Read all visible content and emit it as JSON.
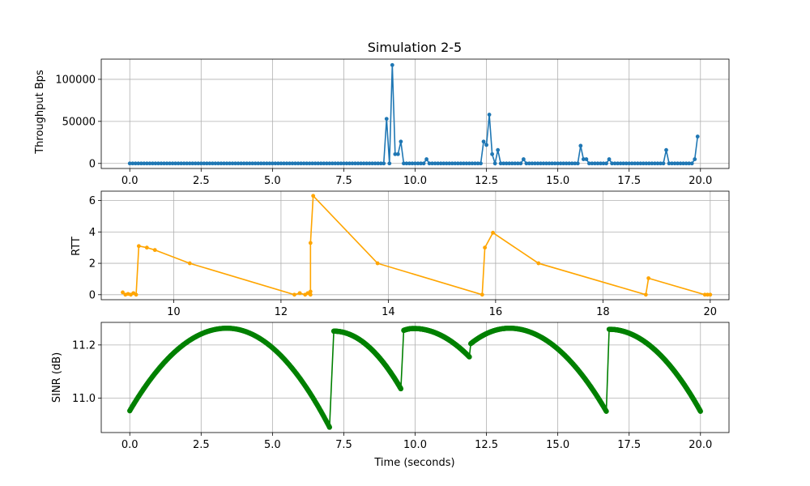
{
  "title": "Simulation 2-5",
  "chart_data": [
    {
      "type": "line",
      "ylabel": "Throughput Bps",
      "xlabel": "",
      "xlim": [
        -1.0,
        21.0
      ],
      "ylim": [
        -6000,
        124000
      ],
      "grid": true,
      "color": "#1f77b4",
      "xticks": [
        0.0,
        2.5,
        5.0,
        7.5,
        10.0,
        12.5,
        15.0,
        17.5,
        20.0
      ],
      "xtick_labels": [
        "0.0",
        "2.5",
        "5.0",
        "7.5",
        "10.0",
        "12.5",
        "15.0",
        "17.5",
        "20.0"
      ],
      "yticks": [
        0,
        50000,
        100000
      ],
      "ytick_labels": [
        "0",
        "50000",
        "100000"
      ],
      "x": [
        9.0,
        9.1,
        9.2,
        9.3,
        9.4,
        9.5,
        9.6,
        10.3,
        10.4,
        12.3,
        12.4,
        12.5,
        12.6,
        12.7,
        12.8,
        12.9,
        13.7,
        13.8,
        13.9,
        15.7,
        15.8,
        15.9,
        16.0,
        16.1,
        16.7,
        16.8,
        16.9,
        18.7,
        18.8,
        18.9,
        19.8,
        19.9
      ],
      "y": [
        53000,
        0,
        117000,
        11000,
        11000,
        26000,
        0,
        0,
        5000,
        0,
        26000,
        22000,
        58000,
        11000,
        0,
        16000,
        0,
        5000,
        0,
        0,
        21000,
        5000,
        5000,
        0,
        0,
        5000,
        0,
        0,
        16000,
        0,
        5000,
        32000
      ]
    },
    {
      "type": "line",
      "ylabel": "RTT",
      "xlabel": "",
      "xlim": [
        8.65,
        20.35
      ],
      "ylim": [
        -0.32,
        6.6
      ],
      "grid": true,
      "color": "#ffa500",
      "xticks": [
        10,
        12,
        14,
        16,
        18,
        20
      ],
      "xtick_labels": [
        "10",
        "12",
        "14",
        "16",
        "18",
        "20"
      ],
      "yticks": [
        0,
        2,
        4,
        6
      ],
      "ytick_labels": [
        "0",
        "2",
        "4",
        "6"
      ],
      "x": [
        9.05,
        9.1,
        9.15,
        9.2,
        9.25,
        9.3,
        9.35,
        9.5,
        9.65,
        10.3,
        12.25,
        12.35,
        12.45,
        12.5,
        12.55,
        12.55,
        12.55,
        12.6,
        13.8,
        15.75,
        15.8,
        15.95,
        16.8,
        18.8,
        18.85,
        19.9,
        19.95,
        20.0
      ],
      "y": [
        0.15,
        0.0,
        0.05,
        0.0,
        0.1,
        0.0,
        3.1,
        3.0,
        2.85,
        2.0,
        0.0,
        0.1,
        0.0,
        0.1,
        0.0,
        0.2,
        3.3,
        6.3,
        2.0,
        0.0,
        3.0,
        3.95,
        2.0,
        0.0,
        1.05,
        0.0,
        0.0,
        0.0
      ]
    },
    {
      "type": "line",
      "ylabel": "SINR (dB)",
      "xlabel": "Time (seconds)",
      "xlim": [
        -1.0,
        21.0
      ],
      "ylim": [
        10.87,
        11.285
      ],
      "grid": true,
      "color": "#008000",
      "xticks": [
        0.0,
        2.5,
        5.0,
        7.5,
        10.0,
        12.5,
        15.0,
        17.5,
        20.0
      ],
      "xtick_labels": [
        "0.0",
        "2.5",
        "5.0",
        "7.5",
        "10.0",
        "12.5",
        "15.0",
        "17.5",
        "20.0"
      ],
      "yticks": [
        11.0,
        11.2
      ],
      "ytick_labels": [
        "11.0",
        "11.2"
      ],
      "segments": [
        {
          "x_start": 0.0,
          "x_end": 7.0,
          "y_start": 10.952,
          "peak_x": 3.4,
          "peak_y": 11.263,
          "y_end": 10.89
        },
        {
          "x_start": 7.15,
          "x_end": 9.5,
          "y_start": 11.252,
          "peak_x": 7.15,
          "peak_y": 11.252,
          "y_end": 11.035
        },
        {
          "x_start": 9.6,
          "x_end": 11.9,
          "y_start": 11.255,
          "peak_x": 9.95,
          "peak_y": 11.262,
          "y_end": 11.155
        },
        {
          "x_start": 11.95,
          "x_end": 16.7,
          "y_start": 11.205,
          "peak_x": 13.3,
          "peak_y": 11.263,
          "y_end": 10.95
        },
        {
          "x_start": 16.8,
          "x_end": 20.0,
          "y_start": 11.259,
          "peak_x": 16.8,
          "peak_y": 11.259,
          "y_end": 10.95
        }
      ]
    }
  ]
}
